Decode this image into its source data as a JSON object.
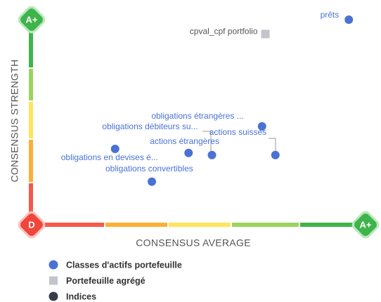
{
  "chart_data": {
    "type": "scatter",
    "xlabel": "CONSENSUS AVERAGE",
    "ylabel": "CONSENSUS STRENGTH",
    "origin_label": "D",
    "x_max_label": "A+",
    "y_max_label": "A+",
    "xlim": [
      0,
      100
    ],
    "ylim": [
      0,
      100
    ],
    "series": [
      {
        "name": "Classes d'actifs portefeuille",
        "color": "#4a72d4",
        "marker": "circle",
        "labels": [
          "prêts",
          "obligations étrangères ...",
          "obligations débiteurs su...",
          "actions suisses",
          "actions étrangères",
          "obligations en devises é...",
          "obligations convertibles"
        ],
        "x": [
          95,
          69,
          54,
          73,
          47,
          25,
          36
        ],
        "values": [
          100,
          48,
          34,
          34,
          35,
          37,
          21
        ]
      },
      {
        "name": "Portefeuille agrégé",
        "color": "#c3c4cc",
        "marker": "square",
        "labels": [
          "cpval_cpf portfolio"
        ],
        "x": [
          70
        ],
        "values": [
          93
        ]
      },
      {
        "name": "Indices",
        "color": "#383d47",
        "marker": "circle",
        "labels": [],
        "x": [],
        "values": []
      }
    ]
  }
}
